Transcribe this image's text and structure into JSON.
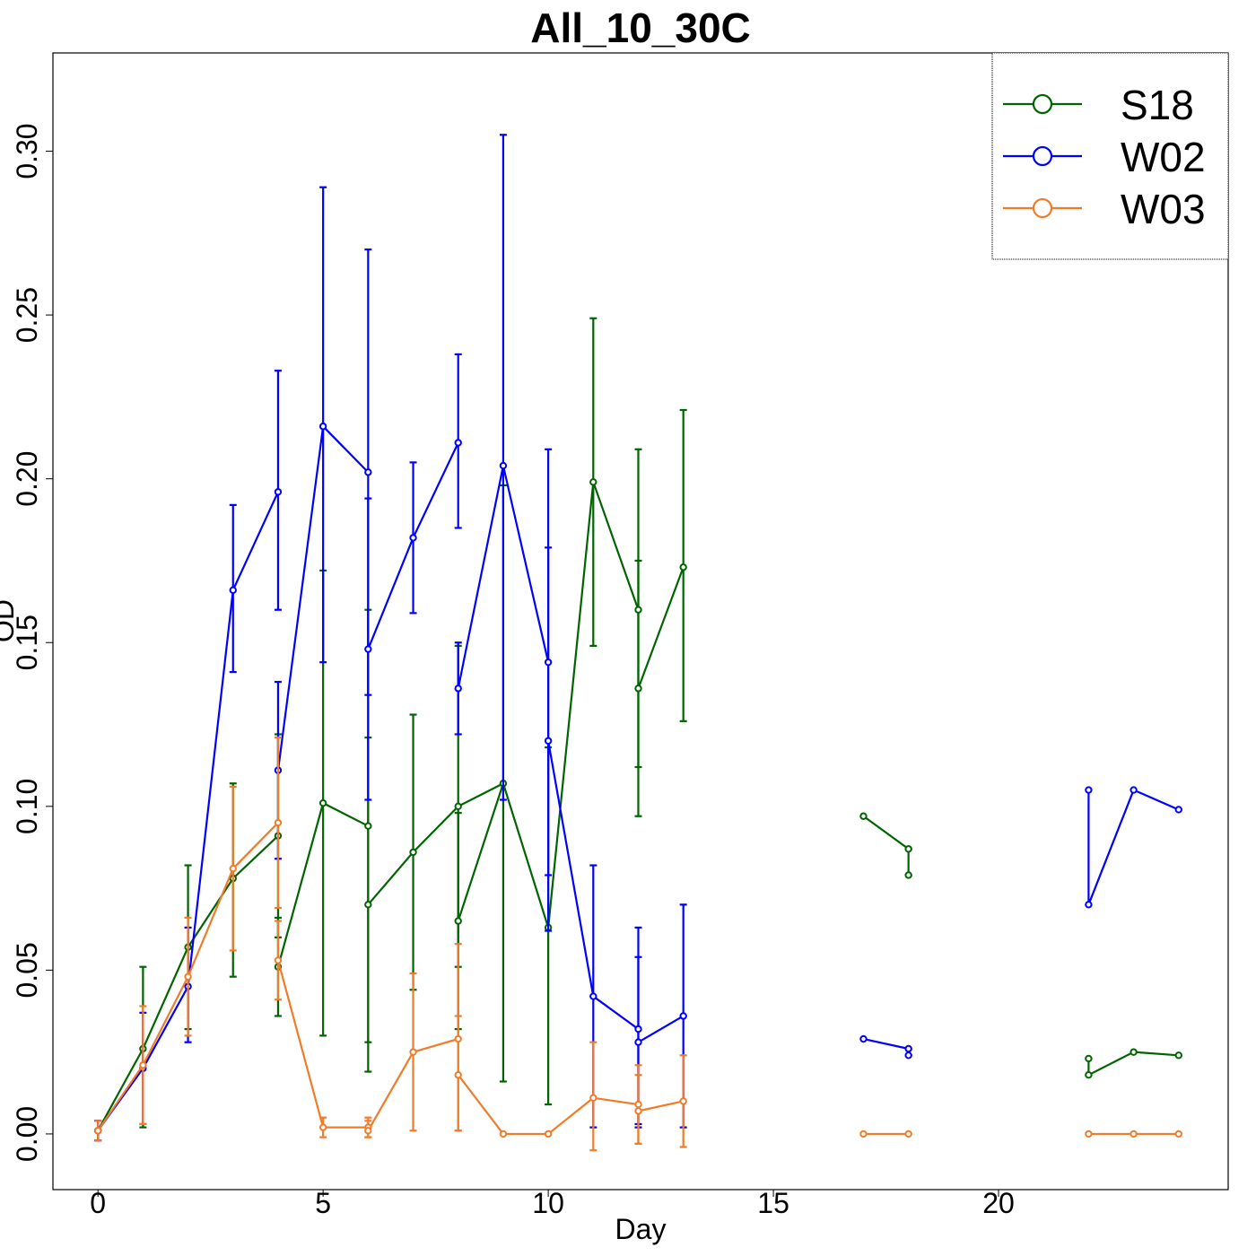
{
  "chart_data": {
    "type": "line",
    "title": "All_10_30C",
    "xlabel": "Day",
    "ylabel": "OD",
    "xlim": [
      -1,
      25.1
    ],
    "ylim": [
      -0.017,
      0.33
    ],
    "xticks": [
      0,
      5,
      10,
      15,
      20
    ],
    "yticks": [
      0.0,
      0.05,
      0.1,
      0.15,
      0.2,
      0.25,
      0.3
    ],
    "ytick_labels": [
      "0.00",
      "0.05",
      "0.10",
      "0.15",
      "0.20",
      "0.25",
      "0.30"
    ],
    "grid": false,
    "legend_position": "top-right",
    "series": [
      {
        "name": "S18",
        "color": "#006400",
        "segments": [
          [
            [
              0,
              0.001
            ],
            [
              1,
              0.026
            ],
            [
              2,
              0.057
            ],
            [
              3,
              0.078
            ],
            [
              4,
              0.091
            ]
          ],
          [
            [
              4,
              0.051
            ],
            [
              5,
              0.101
            ],
            [
              6,
              0.094
            ]
          ],
          [
            [
              6,
              0.07
            ],
            [
              7,
              0.086
            ],
            [
              8,
              0.1
            ],
            [
              9,
              0.107
            ]
          ],
          [
            [
              8,
              0.065
            ],
            [
              9,
              0.107
            ],
            [
              10,
              0.063
            ],
            [
              11,
              0.199
            ],
            [
              12,
              0.16
            ]
          ],
          [
            [
              12,
              0.136
            ],
            [
              13,
              0.173
            ]
          ],
          [
            [
              17,
              0.097
            ],
            [
              18,
              0.087
            ]
          ],
          [
            [
              22,
              0.018
            ],
            [
              23,
              0.025
            ],
            [
              24,
              0.024
            ]
          ]
        ],
        "points": [
          {
            "x": 0,
            "y": 0.001,
            "lo": -0.002,
            "hi": 0.004
          },
          {
            "x": 1,
            "y": 0.026,
            "lo": 0.002,
            "hi": 0.051
          },
          {
            "x": 2,
            "y": 0.057,
            "lo": 0.032,
            "hi": 0.082
          },
          {
            "x": 3,
            "y": 0.078,
            "lo": 0.048,
            "hi": 0.107
          },
          {
            "x": 4,
            "y": 0.091,
            "lo": 0.06,
            "hi": 0.122
          },
          {
            "x": 4,
            "y": 0.051,
            "lo": 0.036,
            "hi": 0.066
          },
          {
            "x": 5,
            "y": 0.101,
            "lo": 0.03,
            "hi": 0.172
          },
          {
            "x": 6,
            "y": 0.094,
            "lo": 0.028,
            "hi": 0.16
          },
          {
            "x": 6,
            "y": 0.07,
            "lo": 0.019,
            "hi": 0.121
          },
          {
            "x": 7,
            "y": 0.086,
            "lo": 0.044,
            "hi": 0.128
          },
          {
            "x": 8,
            "y": 0.1,
            "lo": 0.051,
            "hi": 0.149
          },
          {
            "x": 8,
            "y": 0.065,
            "lo": 0.032,
            "hi": 0.098
          },
          {
            "x": 9,
            "y": 0.107,
            "lo": 0.016,
            "hi": 0.198
          },
          {
            "x": 10,
            "y": 0.063,
            "lo": 0.009,
            "hi": 0.118
          },
          {
            "x": 11,
            "y": 0.199,
            "lo": 0.149,
            "hi": 0.249
          },
          {
            "x": 12,
            "y": 0.16,
            "lo": 0.112,
            "hi": 0.209
          },
          {
            "x": 12,
            "y": 0.136,
            "lo": 0.097,
            "hi": 0.175
          },
          {
            "x": 13,
            "y": 0.173,
            "lo": 0.126,
            "hi": 0.221
          },
          {
            "x": 17,
            "y": 0.097
          },
          {
            "x": 18,
            "y": 0.087,
            "lo": 0.079,
            "hi": 0.087
          },
          {
            "x": 18,
            "y": 0.079
          },
          {
            "x": 22,
            "y": 0.023,
            "lo": 0.018,
            "hi": 0.023
          },
          {
            "x": 22,
            "y": 0.018
          },
          {
            "x": 23,
            "y": 0.025
          },
          {
            "x": 24,
            "y": 0.024
          }
        ]
      },
      {
        "name": "W02",
        "color": "#0000ff",
        "segments": [
          [
            [
              0,
              0.001
            ],
            [
              1,
              0.02
            ],
            [
              2,
              0.045
            ],
            [
              3,
              0.166
            ],
            [
              4,
              0.196
            ]
          ],
          [
            [
              4,
              0.111
            ],
            [
              5,
              0.216
            ],
            [
              6,
              0.202
            ]
          ],
          [
            [
              6,
              0.148
            ],
            [
              7,
              0.182
            ],
            [
              8,
              0.211
            ]
          ],
          [
            [
              8,
              0.136
            ],
            [
              9,
              0.204
            ],
            [
              10,
              0.144
            ]
          ],
          [
            [
              10,
              0.12
            ],
            [
              11,
              0.042
            ],
            [
              12,
              0.032
            ]
          ],
          [
            [
              12,
              0.028
            ],
            [
              13,
              0.036
            ]
          ],
          [
            [
              17,
              0.029
            ],
            [
              18,
              0.026
            ]
          ],
          [
            [
              22,
              0.105
            ],
            [
              22,
              0.07
            ],
            [
              23,
              0.105
            ],
            [
              24,
              0.099
            ]
          ]
        ],
        "points": [
          {
            "x": 0,
            "y": 0.001,
            "lo": -0.002,
            "hi": 0.004
          },
          {
            "x": 1,
            "y": 0.02,
            "lo": 0.003,
            "hi": 0.037
          },
          {
            "x": 2,
            "y": 0.045,
            "lo": 0.028,
            "hi": 0.063
          },
          {
            "x": 3,
            "y": 0.166,
            "lo": 0.141,
            "hi": 0.192
          },
          {
            "x": 4,
            "y": 0.196,
            "lo": 0.16,
            "hi": 0.233
          },
          {
            "x": 4,
            "y": 0.111,
            "lo": 0.084,
            "hi": 0.138
          },
          {
            "x": 5,
            "y": 0.216,
            "lo": 0.144,
            "hi": 0.289
          },
          {
            "x": 6,
            "y": 0.202,
            "lo": 0.134,
            "hi": 0.27
          },
          {
            "x": 6,
            "y": 0.148,
            "lo": 0.102,
            "hi": 0.194
          },
          {
            "x": 7,
            "y": 0.182,
            "lo": 0.159,
            "hi": 0.205
          },
          {
            "x": 8,
            "y": 0.211,
            "lo": 0.185,
            "hi": 0.238
          },
          {
            "x": 8,
            "y": 0.136,
            "lo": 0.122,
            "hi": 0.15
          },
          {
            "x": 9,
            "y": 0.204,
            "lo": 0.102,
            "hi": 0.305
          },
          {
            "x": 10,
            "y": 0.144,
            "lo": 0.079,
            "hi": 0.209
          },
          {
            "x": 10,
            "y": 0.12,
            "lo": 0.062,
            "hi": 0.179
          },
          {
            "x": 11,
            "y": 0.042,
            "lo": 0.002,
            "hi": 0.082
          },
          {
            "x": 12,
            "y": 0.032,
            "lo": 0.003,
            "hi": 0.063
          },
          {
            "x": 12,
            "y": 0.028,
            "lo": 0.002,
            "hi": 0.054
          },
          {
            "x": 13,
            "y": 0.036,
            "lo": 0.002,
            "hi": 0.07
          },
          {
            "x": 17,
            "y": 0.029
          },
          {
            "x": 18,
            "y": 0.026,
            "lo": 0.024,
            "hi": 0.026
          },
          {
            "x": 18,
            "y": 0.024
          },
          {
            "x": 22,
            "y": 0.105
          },
          {
            "x": 22,
            "y": 0.07
          },
          {
            "x": 23,
            "y": 0.105
          },
          {
            "x": 24,
            "y": 0.099
          }
        ]
      },
      {
        "name": "W03",
        "color": "#f07c2a",
        "segments": [
          [
            [
              0,
              0.001
            ],
            [
              1,
              0.021
            ],
            [
              2,
              0.048
            ],
            [
              3,
              0.081
            ],
            [
              4,
              0.095
            ]
          ],
          [
            [
              4,
              0.053
            ],
            [
              5,
              0.002
            ],
            [
              6,
              0.002
            ]
          ],
          [
            [
              6,
              0.001
            ],
            [
              7,
              0.025
            ],
            [
              8,
              0.029
            ]
          ],
          [
            [
              8,
              0.018
            ],
            [
              9,
              0.0
            ],
            [
              10,
              0.0
            ],
            [
              11,
              0.011
            ],
            [
              12,
              0.009
            ]
          ],
          [
            [
              12,
              0.007
            ],
            [
              13,
              0.01
            ]
          ],
          [
            [
              17,
              0.0
            ],
            [
              18,
              0.0
            ]
          ],
          [
            [
              22,
              0.0
            ],
            [
              23,
              0.0
            ],
            [
              24,
              0.0
            ]
          ]
        ],
        "points": [
          {
            "x": 0,
            "y": 0.001,
            "lo": -0.002,
            "hi": 0.004
          },
          {
            "x": 1,
            "y": 0.021,
            "lo": 0.003,
            "hi": 0.039
          },
          {
            "x": 2,
            "y": 0.048,
            "lo": 0.03,
            "hi": 0.066
          },
          {
            "x": 3,
            "y": 0.081,
            "lo": 0.056,
            "hi": 0.106
          },
          {
            "x": 4,
            "y": 0.095,
            "lo": 0.069,
            "hi": 0.121
          },
          {
            "x": 4,
            "y": 0.053,
            "lo": 0.041,
            "hi": 0.065
          },
          {
            "x": 5,
            "y": 0.002,
            "lo": -0.001,
            "hi": 0.005
          },
          {
            "x": 6,
            "y": 0.002,
            "lo": -0.001,
            "hi": 0.005
          },
          {
            "x": 6,
            "y": 0.001,
            "lo": -0.001,
            "hi": 0.004
          },
          {
            "x": 7,
            "y": 0.025,
            "lo": 0.001,
            "hi": 0.049
          },
          {
            "x": 8,
            "y": 0.029,
            "lo": 0.001,
            "hi": 0.058
          },
          {
            "x": 8,
            "y": 0.018,
            "lo": 0.001,
            "hi": 0.036
          },
          {
            "x": 9,
            "y": 0.0
          },
          {
            "x": 10,
            "y": 0.0
          },
          {
            "x": 11,
            "y": 0.011,
            "lo": -0.005,
            "hi": 0.028
          },
          {
            "x": 12,
            "y": 0.009,
            "lo": -0.003,
            "hi": 0.021
          },
          {
            "x": 12,
            "y": 0.007,
            "lo": -0.003,
            "hi": 0.018
          },
          {
            "x": 13,
            "y": 0.01,
            "lo": -0.004,
            "hi": 0.024
          },
          {
            "x": 17,
            "y": 0.0
          },
          {
            "x": 18,
            "y": 0.0
          },
          {
            "x": 22,
            "y": 0.0
          },
          {
            "x": 23,
            "y": 0.0
          },
          {
            "x": 24,
            "y": 0.0
          }
        ]
      }
    ]
  }
}
